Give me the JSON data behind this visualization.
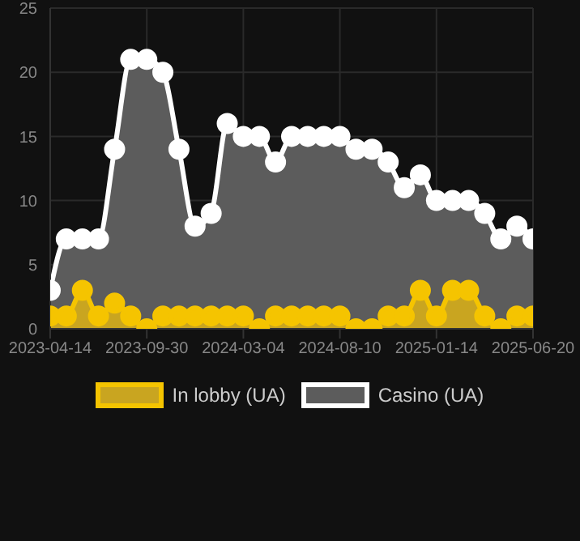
{
  "chart_data": {
    "type": "area",
    "categories": [
      "2023-04-14",
      null,
      null,
      null,
      null,
      null,
      "2023-09-30",
      null,
      null,
      null,
      null,
      null,
      "2024-03-04",
      null,
      null,
      null,
      null,
      null,
      "2024-08-10",
      null,
      null,
      null,
      null,
      null,
      "2025-01-14",
      null,
      null,
      null,
      null,
      null,
      "2025-06-20"
    ],
    "series": [
      {
        "name": "In lobby (UA)",
        "color": "#f5c400",
        "values": [
          1,
          1,
          3,
          1,
          2,
          1,
          0,
          1,
          1,
          1,
          1,
          1,
          1,
          0,
          1,
          1,
          1,
          1,
          1,
          0,
          0,
          1,
          1,
          3,
          1,
          3,
          3,
          1,
          0,
          1,
          1
        ]
      },
      {
        "name": "Casino (UA)",
        "color": "#ffffff",
        "values": [
          3,
          7,
          7,
          7,
          14,
          21,
          21,
          20,
          14,
          8,
          9,
          16,
          15,
          15,
          13,
          15,
          15,
          15,
          15,
          14,
          14,
          13,
          11,
          12,
          10,
          10,
          10,
          9,
          7,
          8,
          7
        ]
      }
    ],
    "ylim": [
      0,
      25
    ],
    "yticks": [
      0,
      5,
      10,
      15,
      20,
      25
    ],
    "grid": true,
    "legend": "bottom",
    "marker": "circle",
    "line_style": "solid"
  }
}
